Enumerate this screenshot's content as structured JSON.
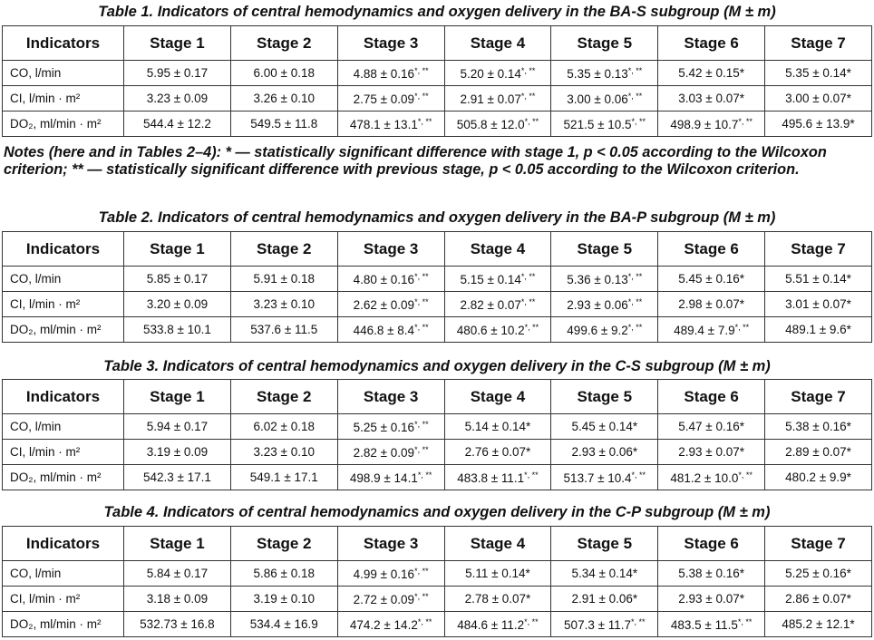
{
  "tables": [
    {
      "title": "Table 1. Indicators of central hemodynamics and oxygen delivery in the BA-S subgroup (M ± m)",
      "header": [
        "Indicators",
        "Stage 1",
        "Stage 2",
        "Stage 3",
        "Stage 4",
        "Stage 5",
        "Stage 6",
        "Stage 7"
      ],
      "rows": [
        {
          "label": "CO, l/min",
          "cells": [
            "5.95 ± 0.17",
            "6.00 ± 0.18",
            {
              "text": "4.88 ± 0.16",
              "sup": "*, **"
            },
            {
              "text": "5.20 ± 0.14",
              "sup": "*, **"
            },
            {
              "text": "5.35 ± 0.13",
              "sup": "*, **"
            },
            "5.42 ± 0.15*",
            "5.35 ± 0.14*"
          ]
        },
        {
          "label": "CI, l/min · m²",
          "cells": [
            "3.23 ± 0.09",
            "3.26 ± 0.10",
            {
              "text": "2.75 ± 0.09",
              "sup": "*, **"
            },
            {
              "text": "2.91 ± 0.07",
              "sup": "*, **"
            },
            {
              "text": "3.00 ± 0.06",
              "sup": "*, **"
            },
            "3.03 ± 0.07*",
            "3.00 ± 0.07*"
          ]
        },
        {
          "label": "DO₂, ml/min · m²",
          "cells": [
            "544.4 ± 12.2",
            "549.5 ± 11.8",
            {
              "text": "478.1 ± 13.1",
              "sup": "*, **"
            },
            {
              "text": "505.8 ± 12.0",
              "sup": "*, **"
            },
            {
              "text": "521.5 ± 10.5",
              "sup": "*, **"
            },
            {
              "text": "498.9 ± 10.7",
              "sup": "*, **"
            },
            "495.6 ± 13.9*"
          ]
        }
      ]
    },
    {
      "title": "Table 2. Indicators of central hemodynamics and oxygen delivery in the BA-P subgroup (M ± m)",
      "header": [
        "Indicators",
        "Stage 1",
        "Stage 2",
        "Stage 3",
        "Stage 4",
        "Stage 5",
        "Stage 6",
        "Stage 7"
      ],
      "rows": [
        {
          "label": "CO, l/min",
          "cells": [
            "5.85 ± 0.17",
            "5.91 ± 0.18",
            {
              "text": "4.80 ± 0.16",
              "sup": "*, **"
            },
            {
              "text": "5.15 ± 0.14",
              "sup": "*, **"
            },
            {
              "text": "5.36 ± 0.13",
              "sup": "*, **"
            },
            "5.45 ± 0.16*",
            "5.51 ± 0.14*"
          ]
        },
        {
          "label": "CI, l/min · m²",
          "cells": [
            "3.20 ± 0.09",
            "3.23 ± 0.10",
            {
              "text": "2.62 ± 0.09",
              "sup": "*, **"
            },
            {
              "text": "2.82 ± 0.07",
              "sup": "*, **"
            },
            {
              "text": "2.93 ± 0.06",
              "sup": "*, **"
            },
            "2.98 ± 0.07*",
            "3.01 ± 0.07*"
          ]
        },
        {
          "label": "DO₂, ml/min · m²",
          "cells": [
            "533.8 ± 10.1",
            "537.6 ± 11.5",
            {
              "text": "446.8 ± 8.4",
              "sup": "*, **"
            },
            {
              "text": "480.6 ± 10.2",
              "sup": "*, **"
            },
            {
              "text": "499.6 ± 9.2",
              "sup": "*, **"
            },
            {
              "text": "489.4 ± 7.9",
              "sup": "*, **"
            },
            "489.1 ± 9.6*"
          ]
        }
      ]
    },
    {
      "title": "Table 3. Indicators of central hemodynamics and oxygen delivery in the C-S subgroup (M ± m)",
      "header": [
        "Indicators",
        "Stage 1",
        "Stage 2",
        "Stage 3",
        "Stage 4",
        "Stage 5",
        "Stage 6",
        "Stage 7"
      ],
      "rows": [
        {
          "label": "CO, l/min",
          "cells": [
            "5.94 ± 0.17",
            "6.02 ± 0.18",
            {
              "text": "5.25 ± 0.16",
              "sup": "*, **"
            },
            "5.14 ± 0.14*",
            "5.45 ± 0.14*",
            "5.47 ± 0.16*",
            "5.38 ± 0.16*"
          ]
        },
        {
          "label": "CI, l/min · m²",
          "cells": [
            "3.19 ± 0.09",
            "3.23 ± 0.10",
            {
              "text": "2.82 ± 0.09",
              "sup": "*, **"
            },
            "2.76 ± 0.07*",
            "2.93 ± 0.06*",
            "2.93 ± 0.07*",
            "2.89 ± 0.07*"
          ]
        },
        {
          "label": "DO₂, ml/min · m²",
          "cells": [
            "542.3 ± 17.1",
            "549.1 ± 17.1",
            {
              "text": "498.9 ± 14.1",
              "sup": "*, **"
            },
            {
              "text": "483.8 ± 11.1",
              "sup": "*, **"
            },
            {
              "text": "513.7 ± 10.4",
              "sup": "*, **"
            },
            {
              "text": "481.2 ± 10.0",
              "sup": "*, **"
            },
            "480.2 ± 9.9*"
          ]
        }
      ]
    },
    {
      "title": "Table 4. Indicators of central hemodynamics and oxygen delivery in the C-P subgroup (M ± m)",
      "header": [
        "Indicators",
        "Stage 1",
        "Stage 2",
        "Stage 3",
        "Stage 4",
        "Stage 5",
        "Stage 6",
        "Stage 7"
      ],
      "rows": [
        {
          "label": "CO, l/min",
          "cells": [
            "5.84 ± 0.17",
            "5.86 ± 0.18",
            {
              "text": "4.99 ± 0.16",
              "sup": "*, **"
            },
            "5.11 ± 0.14*",
            "5.34 ± 0.14*",
            "5.38 ± 0.16*",
            "5.25 ± 0.16*"
          ]
        },
        {
          "label": "CI, l/min · m²",
          "cells": [
            "3.18 ± 0.09",
            "3.19 ± 0.10",
            {
              "text": "2.72 ± 0.09",
              "sup": "*, **"
            },
            "2.78 ± 0.07*",
            "2.91 ± 0.06*",
            "2.93 ± 0.07*",
            "2.86 ± 0.07*"
          ]
        },
        {
          "label": "DO₂, ml/min · m²",
          "cells": [
            "532.73 ± 16.8",
            "534.4 ± 16.9",
            {
              "text": "474.2 ± 14.2",
              "sup": "*, **"
            },
            {
              "text": "484.6 ± 11.2",
              "sup": "*, **"
            },
            {
              "text": "507.3 ± 11.7",
              "sup": "*, **"
            },
            {
              "text": "483.5 ± 11.5",
              "sup": "*, **"
            },
            "485.2 ± 12.1*"
          ]
        }
      ]
    }
  ],
  "notes": "Notes (here and in Tables 2–4): * — statistically significant difference with stage 1, p < 0.05 according to the Wilcoxon criterion; ** — statistically significant difference with previous stage, p < 0.05 according to the Wilcoxon criterion."
}
